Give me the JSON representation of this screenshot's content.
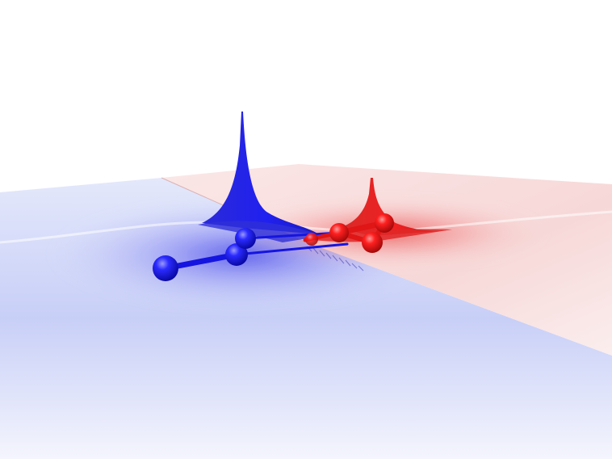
{
  "scene": {
    "colors": {
      "background": "#ffffff",
      "negative_surface": "#1a1aff",
      "negative_atom": "#1010e8",
      "positive_surface": "#ff1a1a",
      "positive_atom": "#e81010"
    },
    "blue_molecule_atoms": 4,
    "red_molecule_atoms": 4
  }
}
